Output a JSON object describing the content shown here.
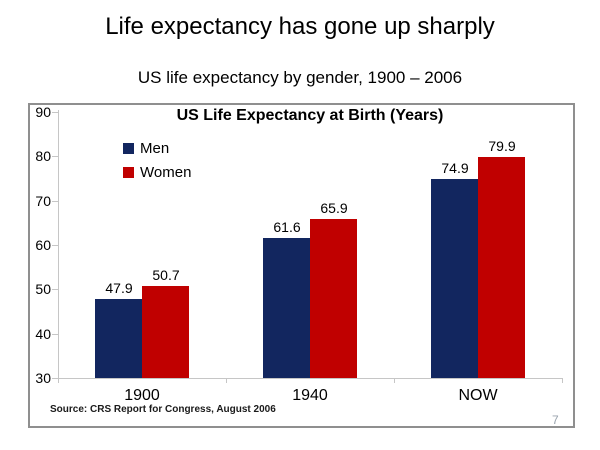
{
  "slide": {
    "title": "Life expectancy has gone up sharply",
    "subtitle": "US life expectancy by gender, 1900 – 2006",
    "page_number": "7"
  },
  "chart_data": {
    "type": "bar",
    "title": "US Life Expectancy at Birth (Years)",
    "categories": [
      "1900",
      "1940",
      "NOW"
    ],
    "series": [
      {
        "name": "Men",
        "color": "#12265F",
        "values": [
          47.9,
          61.6,
          74.9
        ]
      },
      {
        "name": "Women",
        "color": "#C00000",
        "values": [
          50.7,
          65.9,
          79.9
        ]
      }
    ],
    "ylim": [
      30,
      90
    ],
    "yticks": [
      30,
      40,
      50,
      60,
      70,
      80,
      90
    ],
    "grid": false,
    "legend_position": "inside-top-left",
    "data_labels": true,
    "source_note": "Source: CRS Report for Congress, August 2006"
  },
  "colors": {
    "men_bar": "#12265F",
    "women_bar": "#C00000",
    "axis_line": "#C6C6C6",
    "chart_border": "#8F8F8F",
    "text": "#000000",
    "page_number": "#98A2AC",
    "background": "#FFFFFF"
  }
}
